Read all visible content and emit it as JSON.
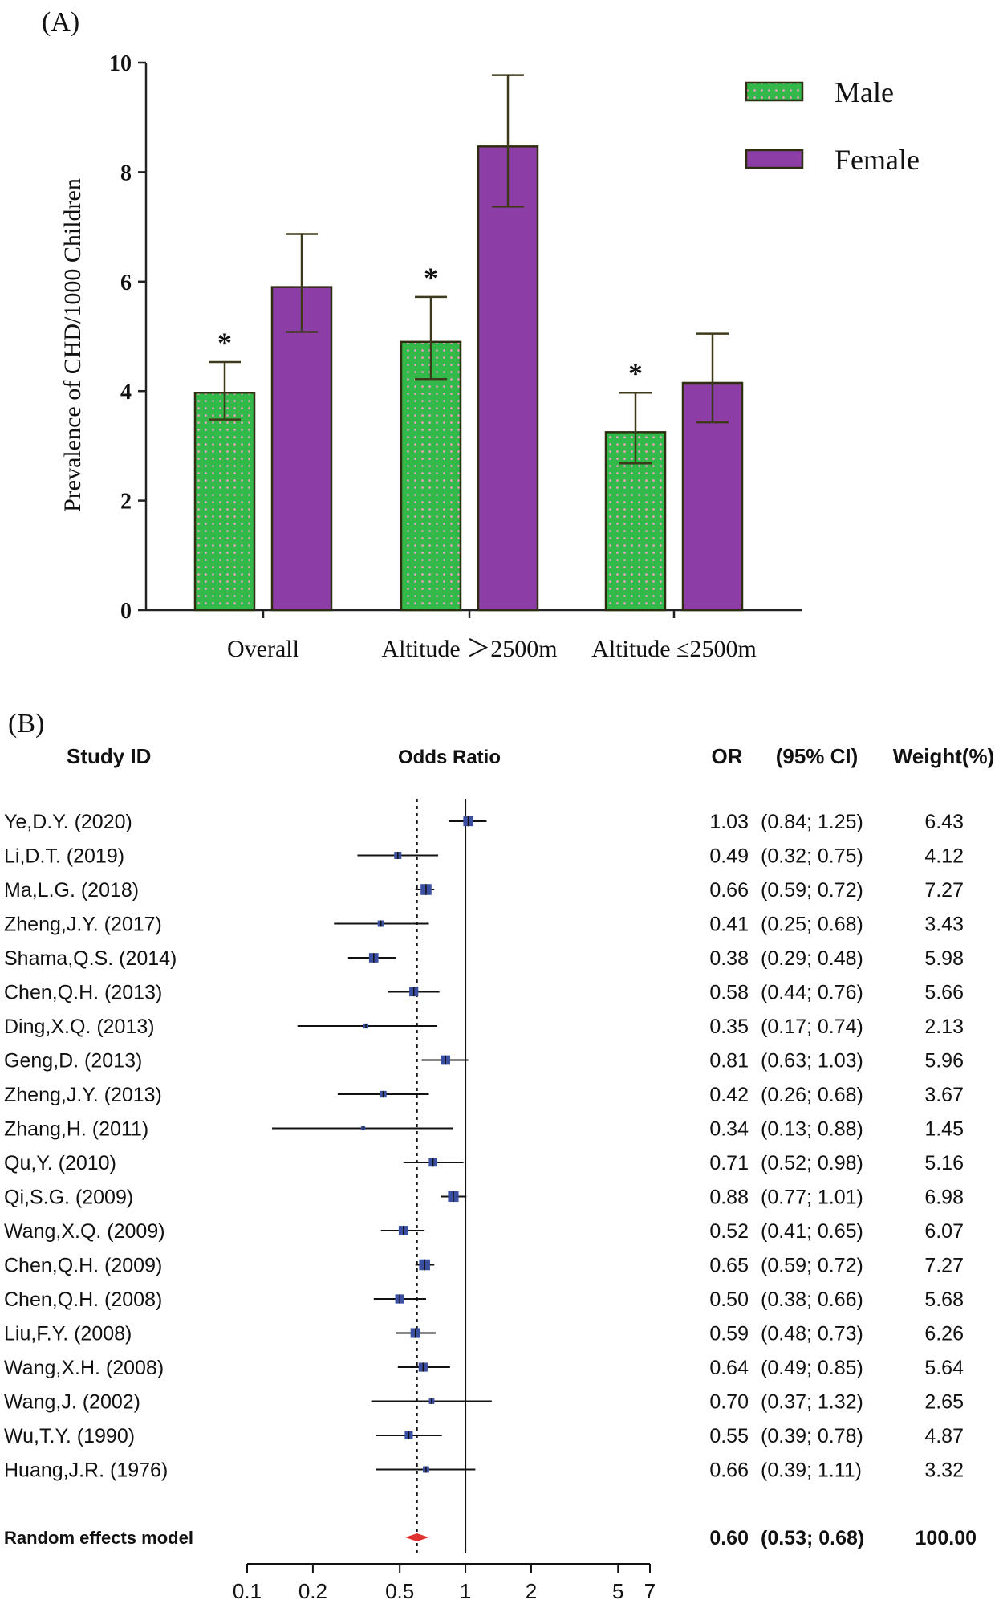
{
  "chart_data": [
    {
      "panel_label": "(A)",
      "type": "bar",
      "ylabel": "Prevalence of CHD/1000 Children",
      "xlabel": "",
      "ylim": [
        0,
        10
      ],
      "yticks": [
        "0",
        "2",
        "4",
        "6",
        "8",
        "10"
      ],
      "categories": [
        "Overall",
        "Altitude ＞2500m",
        "Altitude ≤2500m"
      ],
      "series": [
        {
          "name": "Male",
          "color": "#33b84a",
          "pattern": "dotted",
          "values": [
            3.97,
            4.9,
            3.25
          ],
          "err_low": [
            3.48,
            4.22,
            2.68
          ],
          "err_high": [
            4.53,
            5.72,
            3.97
          ]
        },
        {
          "name": "Female",
          "color": "#8d3ea6",
          "pattern": "solid",
          "values": [
            5.9,
            8.47,
            4.15
          ],
          "err_low": [
            5.08,
            7.37,
            3.43
          ],
          "err_high": [
            6.87,
            9.77,
            5.05
          ]
        }
      ],
      "significance": [
        "*",
        "*",
        "*"
      ],
      "legend": {
        "position": "top-right",
        "entries": [
          "Male",
          "Female"
        ]
      },
      "grid": false
    },
    {
      "panel_label": "(B)",
      "type": "forest",
      "headers": {
        "study": "Study ID",
        "plot": "Odds Ratio",
        "or": "OR",
        "ci": "(95% CI)",
        "weight": "Weight(%)"
      },
      "xscale": "log",
      "xlim": [
        0.1,
        7
      ],
      "xticks": [
        "0.1",
        "0.2",
        "0.5",
        "1",
        "2",
        "5",
        "7"
      ],
      "reference_line": 1,
      "pooled_line": 0.6,
      "studies": [
        {
          "label": "Ye,D.Y. (2020)",
          "or": "1.03",
          "ci": "(0.84; 1.25)",
          "weight": "6.43"
        },
        {
          "label": "Li,D.T. (2019)",
          "or": "0.49",
          "ci": "(0.32; 0.75)",
          "weight": "4.12"
        },
        {
          "label": "Ma,L.G. (2018)",
          "or": "0.66",
          "ci": "(0.59; 0.72)",
          "weight": "7.27"
        },
        {
          "label": "Zheng,J.Y. (2017)",
          "or": "0.41",
          "ci": "(0.25; 0.68)",
          "weight": "3.43"
        },
        {
          "label": "Shama,Q.S. (2014)",
          "or": "0.38",
          "ci": "(0.29; 0.48)",
          "weight": "5.98"
        },
        {
          "label": "Chen,Q.H. (2013)",
          "or": "0.58",
          "ci": "(0.44; 0.76)",
          "weight": "5.66"
        },
        {
          "label": "Ding,X.Q. (2013)",
          "or": "0.35",
          "ci": "(0.17; 0.74)",
          "weight": "2.13"
        },
        {
          "label": "Geng,D. (2013)",
          "or": "0.81",
          "ci": "(0.63; 1.03)",
          "weight": "5.96"
        },
        {
          "label": "Zheng,J.Y. (2013)",
          "or": "0.42",
          "ci": "(0.26; 0.68)",
          "weight": "3.67"
        },
        {
          "label": "Zhang,H. (2011)",
          "or": "0.34",
          "ci": "(0.13; 0.88)",
          "weight": "1.45"
        },
        {
          "label": "Qu,Y. (2010)",
          "or": "0.71",
          "ci": "(0.52; 0.98)",
          "weight": "5.16"
        },
        {
          "label": "Qi,S.G. (2009)",
          "or": "0.88",
          "ci": "(0.77; 1.01)",
          "weight": "6.98"
        },
        {
          "label": "Wang,X.Q. (2009)",
          "or": "0.52",
          "ci": "(0.41; 0.65)",
          "weight": "6.07"
        },
        {
          "label": "Chen,Q.H. (2009)",
          "or": "0.65",
          "ci": "(0.59; 0.72)",
          "weight": "7.27"
        },
        {
          "label": "Chen,Q.H. (2008)",
          "or": "0.50",
          "ci": "(0.38; 0.66)",
          "weight": "5.68"
        },
        {
          "label": "Liu,F.Y. (2008)",
          "or": "0.59",
          "ci": "(0.48; 0.73)",
          "weight": "6.26"
        },
        {
          "label": "Wang,X.H. (2008)",
          "or": "0.64",
          "ci": "(0.49; 0.85)",
          "weight": "5.64"
        },
        {
          "label": "Wang,J. (2002)",
          "or": "0.70",
          "ci": "(0.37; 1.32)",
          "weight": "2.65"
        },
        {
          "label": "Wu,T.Y. (1990)",
          "or": "0.55",
          "ci": "(0.39; 0.78)",
          "weight": "4.87"
        },
        {
          "label": "Huang,J.R. (1976)",
          "or": "0.66",
          "ci": "(0.39; 1.11)",
          "weight": "3.32"
        }
      ],
      "pooled": {
        "label": "Random effects model",
        "or": "0.60",
        "ci": "(0.53; 0.68)",
        "weight": "100.00"
      },
      "colors": {
        "square": "#3b4fa0",
        "diamond": "#e03030"
      }
    }
  ]
}
